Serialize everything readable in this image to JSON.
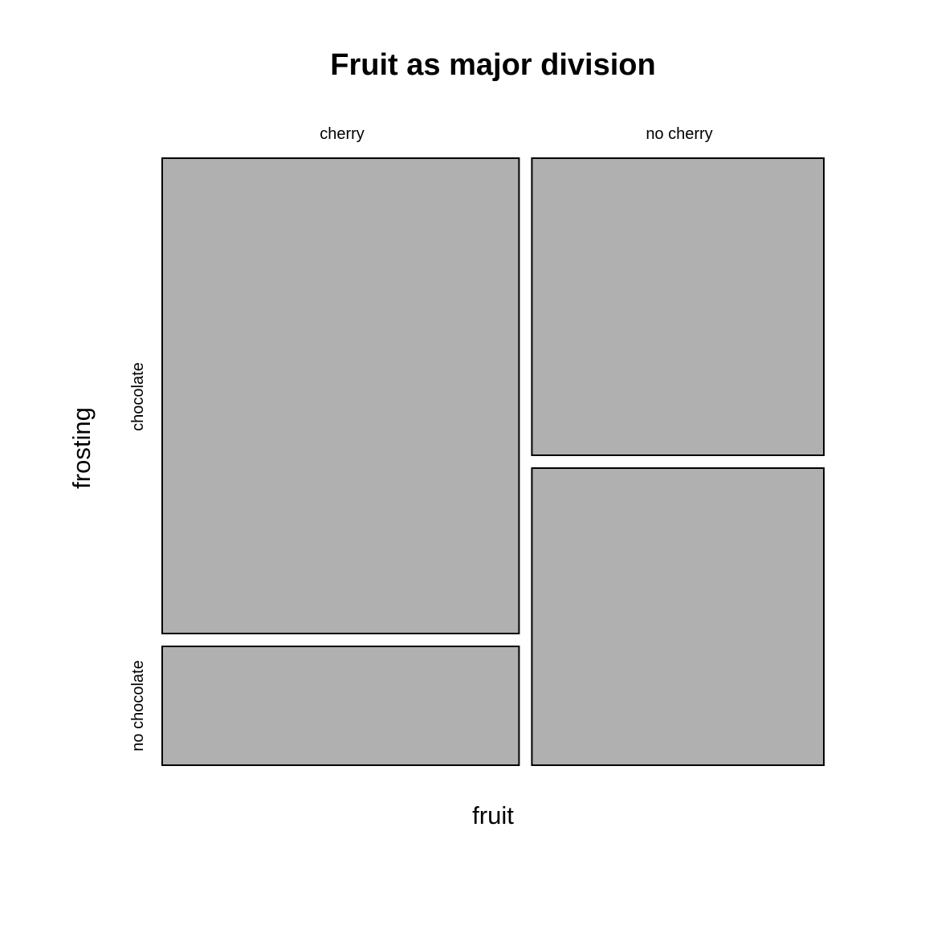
{
  "chart_data": {
    "type": "mosaic",
    "title": "Fruit as major division",
    "xlabel": "fruit",
    "ylabel": "frosting",
    "x_levels": [
      "cherry",
      "no cherry"
    ],
    "y_levels": [
      "chocolate",
      "no chocolate"
    ],
    "x_proportions": [
      0.55,
      0.45
    ],
    "conditional_proportions": [
      {
        "fruit": "cherry",
        "values": [
          0.8,
          0.2
        ]
      },
      {
        "fruit": "no cherry",
        "values": [
          0.5,
          0.5
        ]
      }
    ],
    "tile_color": "#b0b0b0",
    "border_color": "#000000"
  }
}
